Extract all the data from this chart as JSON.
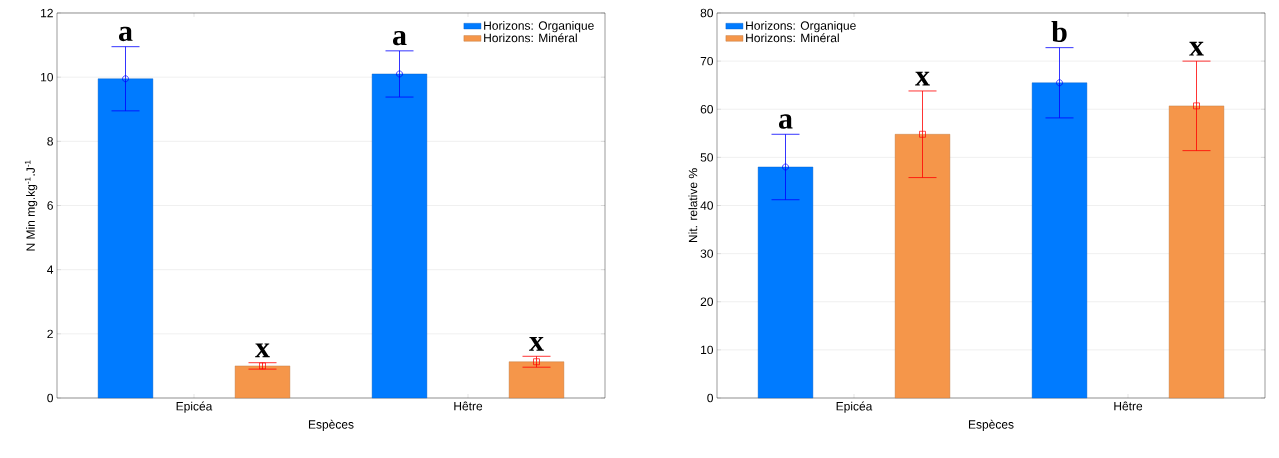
{
  "chart_data": [
    {
      "type": "bar",
      "xlabel": "Espèces",
      "ylabel": "N Min mg.kg$^{-1}$.J$^{-1}$",
      "categories": [
        "Epicéa",
        "Hêtre"
      ],
      "series": [
        {
          "name": "Horizons: Organique",
          "color": "#007bff",
          "values": [
            9.95,
            10.1
          ],
          "errors": [
            1.0,
            0.72
          ]
        },
        {
          "name": "Horizons: Minéral",
          "color": "#f5964a",
          "values": [
            1.0,
            1.13
          ],
          "errors": [
            0.1,
            0.17
          ]
        },
        {
          "type": "scatter",
          "color": "#0000ff",
          "marker": "circle",
          "x": [
            "Epicéa",
            "Hêtre"
          ],
          "values": [
            9.95,
            10.1
          ]
        },
        {
          "type": "scatter",
          "color": "#ff0000",
          "marker": "square",
          "x": [
            "Epicéa",
            "Hêtre"
          ],
          "values": [
            1.0,
            1.13
          ]
        }
      ],
      "ylim": [
        0,
        12
      ],
      "yticks": [
        0,
        2,
        4,
        6,
        8,
        10,
        12
      ],
      "grid": "y",
      "legend": "top right",
      "annotations": [
        "a",
        "x",
        "a",
        "x"
      ]
    },
    {
      "type": "bar",
      "xlabel": "Espèces",
      "ylabel": "Nit. relative %",
      "categories": [
        "Epicéa",
        "Hêtre"
      ],
      "series": [
        {
          "name": "Horizons: Organique",
          "color": "#007bff",
          "values": [
            48,
            65.5
          ],
          "errors": [
            6.8,
            7.3
          ]
        },
        {
          "name": "Horizons: Minéral",
          "color": "#f5964a",
          "values": [
            54.8,
            60.7
          ],
          "errors": [
            9,
            9.3
          ]
        },
        {
          "type": "scatter",
          "color": "#0000ff",
          "marker": "circle",
          "x": [
            "Epicéa",
            "Hêtre"
          ],
          "values": [
            48,
            65.5
          ]
        },
        {
          "type": "scatter",
          "color": "#ff0000",
          "marker": "square",
          "x": [
            "Epicéa",
            "Hêtre"
          ],
          "values": [
            54.8,
            60.7
          ]
        }
      ],
      "ylim": [
        0,
        80
      ],
      "yticks": [
        0,
        10,
        20,
        30,
        40,
        50,
        60,
        70,
        80
      ],
      "grid": "y",
      "legend": "top left",
      "annotations": [
        "a",
        "x",
        "b",
        "x"
      ]
    }
  ]
}
